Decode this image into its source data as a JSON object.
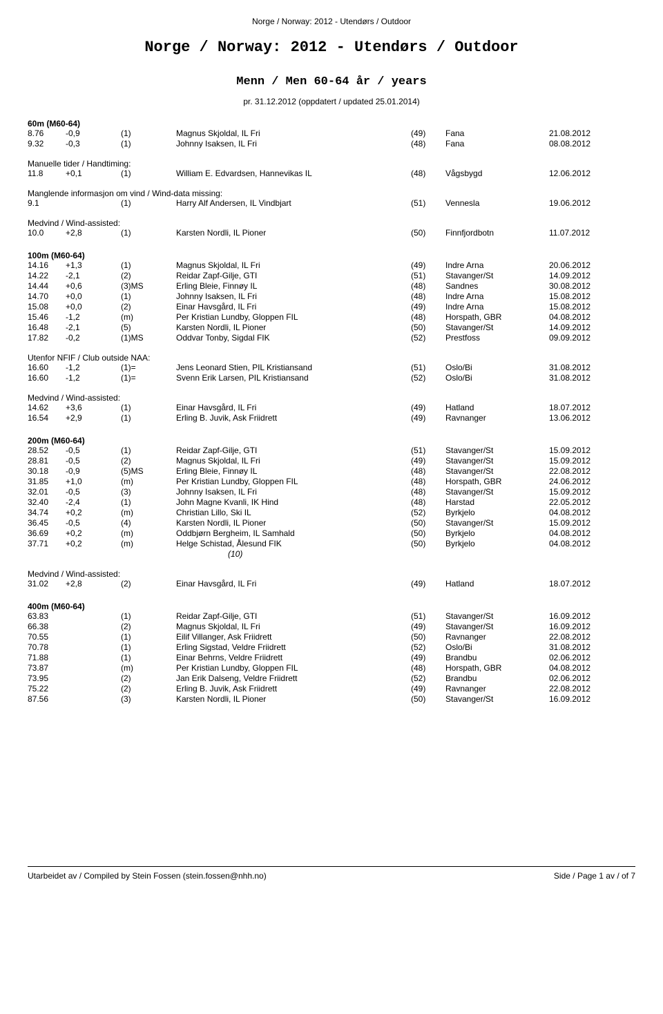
{
  "header_small": "Norge / Norway: 2012 - Utendørs / Outdoor",
  "title_main": "Norge / Norway: 2012 - Utendørs / Outdoor",
  "title_sub": "Menn / Men 60-64 år / years",
  "title_date": "pr. 31.12.2012 (oppdatert / updated 25.01.2014)",
  "footer_left": "Utarbeidet av / Compiled by Stein Fossen (stein.fossen@nhh.no)",
  "footer_right": "Side / Page 1 av / of 7",
  "sections": [
    {
      "header": "60m (M60-64)",
      "rows": [
        {
          "result": "8.76",
          "wind": "-0,9",
          "rank": "(1)",
          "name": "Magnus Skjoldal, IL Fri",
          "yr": "(49)",
          "loc": "Fana",
          "date": "21.08.2012"
        },
        {
          "result": "9.32",
          "wind": "-0,3",
          "rank": "(1)",
          "name": "Johnny Isaksen, IL Fri",
          "yr": "(48)",
          "loc": "Fana",
          "date": "08.08.2012"
        }
      ]
    },
    {
      "note": "Manuelle tider / Handtiming:",
      "rows": [
        {
          "result": "11.8",
          "wind": "+0,1",
          "rank": "(1)",
          "name": "William E. Edvardsen, Hannevikas IL",
          "yr": "(48)",
          "loc": "Vågsbygd",
          "date": "12.06.2012"
        }
      ]
    },
    {
      "note": "Manglende informasjon om vind / Wind-data missing:",
      "rows": [
        {
          "result": "9.1",
          "wind": "",
          "rank": "(1)",
          "name": "Harry Alf Andersen, IL Vindbjart",
          "yr": "(51)",
          "loc": "Vennesla",
          "date": "19.06.2012"
        }
      ]
    },
    {
      "note": "Medvind / Wind-assisted:",
      "rows": [
        {
          "result": "10.0",
          "wind": "+2,8",
          "rank": "(1)",
          "name": "Karsten Nordli, IL Pioner",
          "yr": "(50)",
          "loc": "Finnfjordbotn",
          "date": "11.07.2012"
        }
      ]
    },
    {
      "header": "100m (M60-64)",
      "rows": [
        {
          "result": "14.16",
          "wind": "+1,3",
          "rank": "(1)",
          "name": "Magnus Skjoldal, IL Fri",
          "yr": "(49)",
          "loc": "Indre Arna",
          "date": "20.06.2012"
        },
        {
          "result": "14.22",
          "wind": "-2,1",
          "rank": "(2)",
          "name": "Reidar Zapf-Gilje, GTI",
          "yr": "(51)",
          "loc": "Stavanger/St",
          "date": "14.09.2012"
        },
        {
          "result": "14.44",
          "wind": "+0,6",
          "rank": "(3)MS",
          "name": "Erling Bleie, Finnøy IL",
          "yr": "(48)",
          "loc": "Sandnes",
          "date": "30.08.2012"
        },
        {
          "result": "14.70",
          "wind": "+0,0",
          "rank": "(1)",
          "name": "Johnny Isaksen, IL Fri",
          "yr": "(48)",
          "loc": "Indre Arna",
          "date": "15.08.2012"
        },
        {
          "result": "15.08",
          "wind": "+0,0",
          "rank": "(2)",
          "name": "Einar Havsgård, IL Fri",
          "yr": "(49)",
          "loc": "Indre Arna",
          "date": "15.08.2012"
        },
        {
          "result": "15.46",
          "wind": "-1,2",
          "rank": "(m)",
          "name": "Per Kristian Lundby, Gloppen FIL",
          "yr": "(48)",
          "loc": "Horspath, GBR",
          "date": "04.08.2012"
        },
        {
          "result": "16.48",
          "wind": "-2,1",
          "rank": "(5)",
          "name": "Karsten Nordli, IL Pioner",
          "yr": "(50)",
          "loc": "Stavanger/St",
          "date": "14.09.2012"
        },
        {
          "result": "17.82",
          "wind": "-0,2",
          "rank": "(1)MS",
          "name": "Oddvar Tonby, Sigdal FIK",
          "yr": "(52)",
          "loc": "Prestfoss",
          "date": "09.09.2012"
        }
      ]
    },
    {
      "note": "Utenfor NFIF / Club outside NAA:",
      "rows": [
        {
          "result": "16.60",
          "wind": "-1,2",
          "rank": "(1)=",
          "name": "Jens Leonard Stien, PIL Kristiansand",
          "yr": "(51)",
          "loc": "Oslo/Bi",
          "date": "31.08.2012"
        },
        {
          "result": "16.60",
          "wind": "-1,2",
          "rank": "(1)=",
          "name": "Svenn Erik Larsen, PIL Kristiansand",
          "yr": "(52)",
          "loc": "Oslo/Bi",
          "date": "31.08.2012"
        }
      ]
    },
    {
      "note": "Medvind / Wind-assisted:",
      "rows": [
        {
          "result": "14.62",
          "wind": "+3,6",
          "rank": "(1)",
          "name": "Einar Havsgård, IL Fri",
          "yr": "(49)",
          "loc": "Hatland",
          "date": "18.07.2012"
        },
        {
          "result": "16.54",
          "wind": "+2,9",
          "rank": "(1)",
          "name": "Erling B. Juvik, Ask Friidrett",
          "yr": "(49)",
          "loc": "Ravnanger",
          "date": "13.06.2012"
        }
      ]
    },
    {
      "header": "200m (M60-64)",
      "rows": [
        {
          "result": "28.52",
          "wind": "-0,5",
          "rank": "(1)",
          "name": "Reidar Zapf-Gilje, GTI",
          "yr": "(51)",
          "loc": "Stavanger/St",
          "date": "15.09.2012"
        },
        {
          "result": "28.81",
          "wind": "-0,5",
          "rank": "(2)",
          "name": "Magnus Skjoldal, IL Fri",
          "yr": "(49)",
          "loc": "Stavanger/St",
          "date": "15.09.2012"
        },
        {
          "result": "30.18",
          "wind": "-0,9",
          "rank": "(5)MS",
          "name": "Erling Bleie, Finnøy IL",
          "yr": "(48)",
          "loc": "Stavanger/St",
          "date": "22.08.2012"
        },
        {
          "result": "31.85",
          "wind": "+1,0",
          "rank": "(m)",
          "name": "Per Kristian Lundby, Gloppen FIL",
          "yr": "(48)",
          "loc": "Horspath, GBR",
          "date": "24.06.2012"
        },
        {
          "result": "32.01",
          "wind": "-0,5",
          "rank": "(3)",
          "name": "Johnny Isaksen, IL Fri",
          "yr": "(48)",
          "loc": "Stavanger/St",
          "date": "15.09.2012"
        },
        {
          "result": "32.40",
          "wind": "-2,4",
          "rank": "(1)",
          "name": "John Magne Kvanli, IK Hind",
          "yr": "(48)",
          "loc": "Harstad",
          "date": "22.05.2012"
        },
        {
          "result": "34.74",
          "wind": "+0,2",
          "rank": "(m)",
          "name": "Christian Lillo, Ski IL",
          "yr": "(52)",
          "loc": "Byrkjelo",
          "date": "04.08.2012"
        },
        {
          "result": "36.45",
          "wind": "-0,5",
          "rank": "(4)",
          "name": "Karsten Nordli, IL Pioner",
          "yr": "(50)",
          "loc": "Stavanger/St",
          "date": "15.09.2012"
        },
        {
          "result": "36.69",
          "wind": "+0,2",
          "rank": "(m)",
          "name": "Oddbjørn Bergheim, IL Samhald",
          "yr": "(50)",
          "loc": "Byrkjelo",
          "date": "04.08.2012"
        },
        {
          "result": "37.71",
          "wind": "+0,2",
          "rank": "(m)",
          "name": "Helge Schistad, Ålesund FIK",
          "yr": "(50)",
          "loc": "Byrkjelo",
          "date": "04.08.2012"
        }
      ],
      "count": "(10)"
    },
    {
      "note": "Medvind / Wind-assisted:",
      "rows": [
        {
          "result": "31.02",
          "wind": "+2,8",
          "rank": "(2)",
          "name": "Einar Havsgård, IL Fri",
          "yr": "(49)",
          "loc": "Hatland",
          "date": "18.07.2012"
        }
      ]
    },
    {
      "header": "400m (M60-64)",
      "rows": [
        {
          "result": "63.83",
          "wind": "",
          "rank": "(1)",
          "name": "Reidar Zapf-Gilje, GTI",
          "yr": "(51)",
          "loc": "Stavanger/St",
          "date": "16.09.2012"
        },
        {
          "result": "66.38",
          "wind": "",
          "rank": "(2)",
          "name": "Magnus Skjoldal, IL Fri",
          "yr": "(49)",
          "loc": "Stavanger/St",
          "date": "16.09.2012"
        },
        {
          "result": "70.55",
          "wind": "",
          "rank": "(1)",
          "name": "Eilif Villanger, Ask Friidrett",
          "yr": "(50)",
          "loc": "Ravnanger",
          "date": "22.08.2012"
        },
        {
          "result": "70.78",
          "wind": "",
          "rank": "(1)",
          "name": "Erling Sigstad, Veldre Friidrett",
          "yr": "(52)",
          "loc": "Oslo/Bi",
          "date": "31.08.2012"
        },
        {
          "result": "71.88",
          "wind": "",
          "rank": "(1)",
          "name": "Einar Behrns, Veldre Friidrett",
          "yr": "(49)",
          "loc": "Brandbu",
          "date": "02.06.2012"
        },
        {
          "result": "73.87",
          "wind": "",
          "rank": "(m)",
          "name": "Per Kristian Lundby, Gloppen FIL",
          "yr": "(48)",
          "loc": "Horspath, GBR",
          "date": "04.08.2012"
        },
        {
          "result": "73.95",
          "wind": "",
          "rank": "(2)",
          "name": "Jan Erik Dalseng, Veldre Friidrett",
          "yr": "(52)",
          "loc": "Brandbu",
          "date": "02.06.2012"
        },
        {
          "result": "75.22",
          "wind": "",
          "rank": "(2)",
          "name": "Erling B. Juvik, Ask Friidrett",
          "yr": "(49)",
          "loc": "Ravnanger",
          "date": "22.08.2012"
        },
        {
          "result": "87.56",
          "wind": "",
          "rank": "(3)",
          "name": "Karsten Nordli, IL Pioner",
          "yr": "(50)",
          "loc": "Stavanger/St",
          "date": "16.09.2012"
        }
      ]
    }
  ]
}
